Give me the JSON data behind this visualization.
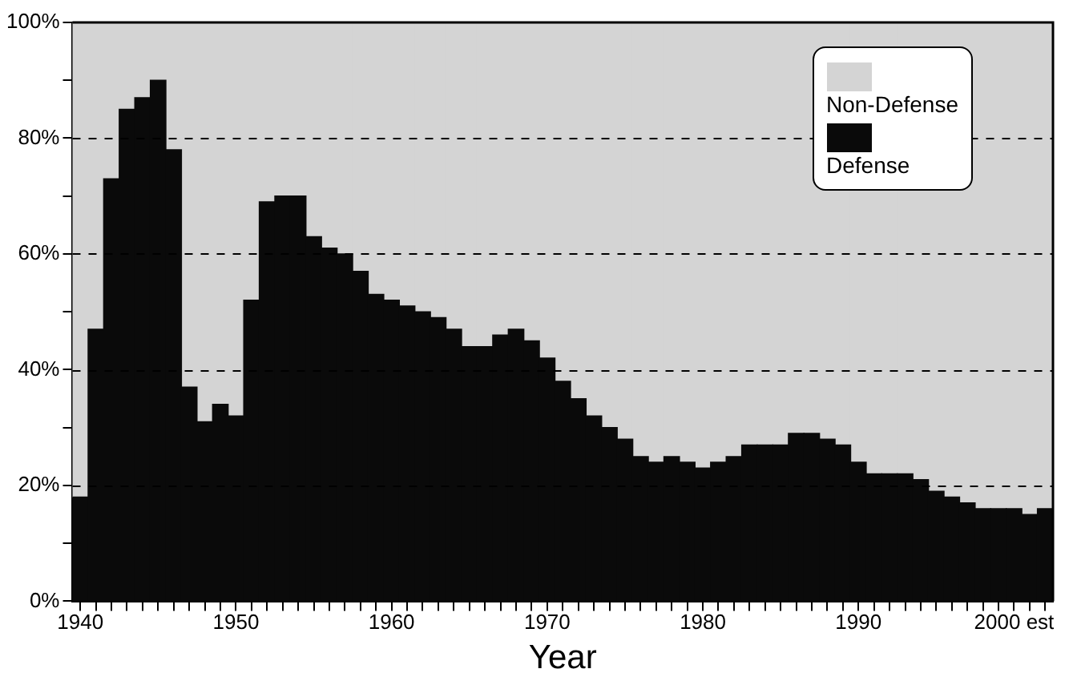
{
  "chart_data": {
    "type": "bar",
    "stacked": true,
    "xlabel": "Year",
    "categories": [
      "1940",
      null,
      null,
      null,
      null,
      null,
      null,
      null,
      null,
      null,
      "1950",
      null,
      null,
      null,
      null,
      null,
      null,
      null,
      null,
      null,
      "1960",
      null,
      null,
      null,
      null,
      null,
      null,
      null,
      null,
      null,
      "1970",
      null,
      null,
      null,
      null,
      null,
      null,
      null,
      null,
      null,
      "1980",
      null,
      null,
      null,
      null,
      null,
      null,
      null,
      null,
      null,
      "1990",
      null,
      null,
      null,
      null,
      null,
      null,
      null,
      null,
      null,
      "2000 est",
      null,
      null
    ],
    "series": [
      {
        "name": "Defense",
        "color": "#0a0a0a",
        "values": [
          18,
          47,
          73,
          85,
          87,
          90,
          78,
          37,
          31,
          34,
          32,
          52,
          69,
          70,
          70,
          63,
          61,
          60,
          57,
          53,
          52,
          51,
          50,
          49,
          47,
          44,
          44,
          46,
          47,
          45,
          42,
          38,
          35,
          32,
          30,
          28,
          25,
          24,
          25,
          24,
          23,
          24,
          25,
          27,
          27,
          27,
          29,
          29,
          28,
          27,
          24,
          22,
          22,
          22,
          21,
          19,
          18,
          17,
          16,
          16,
          16,
          15,
          16
        ]
      },
      {
        "name": "Non-Defense",
        "color": "#d4d4d4",
        "values": [
          82,
          53,
          27,
          15,
          13,
          10,
          22,
          63,
          69,
          66,
          68,
          48,
          31,
          30,
          30,
          37,
          39,
          40,
          43,
          47,
          48,
          49,
          50,
          51,
          53,
          56,
          56,
          54,
          53,
          55,
          58,
          62,
          65,
          68,
          70,
          72,
          75,
          76,
          75,
          76,
          77,
          76,
          75,
          73,
          73,
          73,
          71,
          71,
          72,
          73,
          76,
          78,
          78,
          78,
          79,
          81,
          82,
          83,
          84,
          84,
          84,
          85,
          84
        ]
      }
    ],
    "ylim": [
      0,
      100
    ],
    "yticks": [
      {
        "value": 0,
        "label": "0%"
      },
      {
        "value": 10,
        "label": null
      },
      {
        "value": 20,
        "label": "20%"
      },
      {
        "value": 30,
        "label": null
      },
      {
        "value": 40,
        "label": "40%"
      },
      {
        "value": 50,
        "label": null
      },
      {
        "value": 60,
        "label": "60%"
      },
      {
        "value": 70,
        "label": null
      },
      {
        "value": 80,
        "label": "80%"
      },
      {
        "value": 90,
        "label": null
      },
      {
        "value": 100,
        "label": "100%"
      }
    ],
    "grid": "y",
    "legend": "top right"
  }
}
